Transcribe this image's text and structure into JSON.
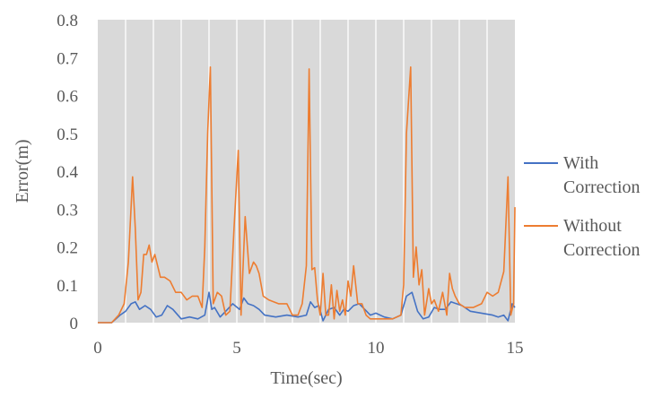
{
  "chart_data": {
    "type": "line",
    "title": "",
    "xlabel": "Time(sec)",
    "ylabel": "Error(m)",
    "xlim": [
      0,
      15
    ],
    "ylim": [
      0,
      0.8
    ],
    "xticks": [
      0,
      5,
      10,
      15
    ],
    "yticks": [
      0,
      0.1,
      0.2,
      0.3,
      0.4,
      0.5,
      0.6,
      0.7,
      0.8
    ],
    "grid": "vertical",
    "plot_background": "#d9d9d9",
    "legend_position": "right",
    "series": [
      {
        "name": "With Correction",
        "color": "#4472c4",
        "x": [
          0,
          0.5,
          0.8,
          1.0,
          1.2,
          1.35,
          1.5,
          1.7,
          1.9,
          2.1,
          2.3,
          2.5,
          2.7,
          3.0,
          3.3,
          3.6,
          3.85,
          4.0,
          4.1,
          4.2,
          4.4,
          4.6,
          4.85,
          5.1,
          5.25,
          5.4,
          5.6,
          5.8,
          6.0,
          6.4,
          6.8,
          7.2,
          7.5,
          7.65,
          7.8,
          7.95,
          8.1,
          8.3,
          8.5,
          8.7,
          8.85,
          9.0,
          9.2,
          9.4,
          9.6,
          9.8,
          10.0,
          10.3,
          10.6,
          10.9,
          11.1,
          11.3,
          11.5,
          11.7,
          11.9,
          12.1,
          12.3,
          12.5,
          12.7,
          12.9,
          13.1,
          13.4,
          13.8,
          14.2,
          14.4,
          14.6,
          14.75,
          14.9,
          15.0
        ],
        "values": [
          0,
          0,
          0.02,
          0.03,
          0.05,
          0.055,
          0.035,
          0.045,
          0.035,
          0.015,
          0.02,
          0.045,
          0.035,
          0.01,
          0.015,
          0.01,
          0.02,
          0.08,
          0.035,
          0.04,
          0.015,
          0.03,
          0.05,
          0.035,
          0.065,
          0.05,
          0.045,
          0.035,
          0.02,
          0.015,
          0.02,
          0.015,
          0.02,
          0.055,
          0.04,
          0.045,
          0.005,
          0.035,
          0.04,
          0.02,
          0.035,
          0.03,
          0.045,
          0.05,
          0.035,
          0.02,
          0.025,
          0.015,
          0.01,
          0.02,
          0.07,
          0.08,
          0.03,
          0.01,
          0.015,
          0.04,
          0.035,
          0.035,
          0.055,
          0.05,
          0.045,
          0.03,
          0.025,
          0.02,
          0.015,
          0.02,
          0.005,
          0.05,
          0.04
        ]
      },
      {
        "name": "Without Correction",
        "color": "#ed7d31",
        "x": [
          0,
          0.5,
          0.75,
          0.95,
          1.1,
          1.25,
          1.35,
          1.45,
          1.55,
          1.65,
          1.75,
          1.85,
          1.95,
          2.05,
          2.15,
          2.25,
          2.4,
          2.6,
          2.8,
          3.0,
          3.2,
          3.4,
          3.6,
          3.75,
          3.85,
          3.95,
          4.05,
          4.15,
          4.3,
          4.45,
          4.6,
          4.75,
          4.9,
          5.05,
          5.15,
          5.3,
          5.45,
          5.6,
          5.7,
          5.8,
          5.95,
          6.15,
          6.5,
          6.8,
          7.0,
          7.2,
          7.35,
          7.5,
          7.6,
          7.7,
          7.8,
          7.9,
          8.0,
          8.1,
          8.2,
          8.3,
          8.4,
          8.5,
          8.6,
          8.7,
          8.8,
          8.9,
          9.0,
          9.1,
          9.2,
          9.35,
          9.5,
          9.65,
          9.8,
          10.0,
          10.3,
          10.6,
          10.9,
          11.0,
          11.1,
          11.25,
          11.35,
          11.45,
          11.55,
          11.65,
          11.75,
          11.9,
          12.0,
          12.1,
          12.25,
          12.4,
          12.55,
          12.65,
          12.75,
          12.85,
          13.0,
          13.2,
          13.5,
          13.8,
          14.0,
          14.2,
          14.4,
          14.6,
          14.75,
          14.85,
          14.95,
          15.0
        ],
        "values": [
          0,
          0,
          0.02,
          0.05,
          0.16,
          0.385,
          0.25,
          0.06,
          0.08,
          0.18,
          0.18,
          0.205,
          0.16,
          0.18,
          0.15,
          0.12,
          0.12,
          0.11,
          0.08,
          0.08,
          0.06,
          0.07,
          0.07,
          0.04,
          0.2,
          0.5,
          0.675,
          0.05,
          0.08,
          0.07,
          0.02,
          0.03,
          0.25,
          0.455,
          0.02,
          0.28,
          0.13,
          0.16,
          0.15,
          0.13,
          0.07,
          0.06,
          0.05,
          0.05,
          0.02,
          0.02,
          0.05,
          0.15,
          0.67,
          0.14,
          0.145,
          0.06,
          0.02,
          0.13,
          0.02,
          0.02,
          0.1,
          0.01,
          0.085,
          0.03,
          0.06,
          0.02,
          0.11,
          0.07,
          0.15,
          0.05,
          0.05,
          0.02,
          0.01,
          0.01,
          0.01,
          0.01,
          0.02,
          0.1,
          0.5,
          0.675,
          0.12,
          0.2,
          0.1,
          0.14,
          0.02,
          0.09,
          0.05,
          0.06,
          0.03,
          0.08,
          0.02,
          0.13,
          0.09,
          0.07,
          0.05,
          0.04,
          0.04,
          0.05,
          0.08,
          0.07,
          0.08,
          0.135,
          0.385,
          0.02,
          0.05,
          0.305
        ]
      }
    ]
  }
}
